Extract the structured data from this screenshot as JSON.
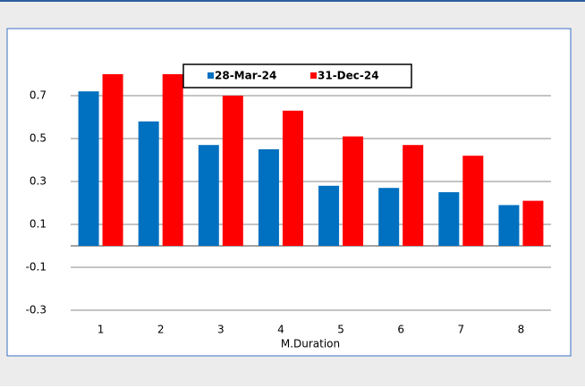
{
  "chart_data": {
    "type": "bar",
    "x_label": "M.Duration",
    "categories": [
      "1",
      "2",
      "3",
      "4",
      "5",
      "6",
      "7",
      "8"
    ],
    "series": [
      {
        "name": "28-Mar-24",
        "color": "#0070c0",
        "values": [
          0.72,
          0.58,
          0.47,
          0.45,
          0.28,
          0.27,
          0.25,
          0.19
        ]
      },
      {
        "name": "31-Dec-24",
        "color": "#ff0000",
        "values": [
          0.8,
          0.8,
          0.7,
          0.63,
          0.51,
          0.47,
          0.42,
          0.21
        ]
      }
    ],
    "ylim": [
      -0.3,
      0.9
    ],
    "yticks": [
      -0.3,
      -0.1,
      0.1,
      0.3,
      0.5,
      0.7
    ],
    "grid": true,
    "legend": "top"
  }
}
